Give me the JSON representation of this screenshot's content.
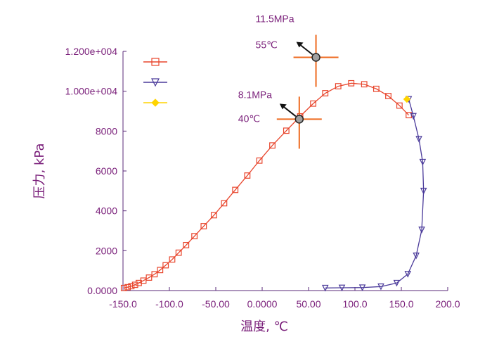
{
  "chart_data": {
    "type": "line",
    "xlabel": "温度, ℃",
    "ylabel": "压力, kPa",
    "xlim": [
      -150,
      200
    ],
    "ylim": [
      0,
      12000
    ],
    "x_ticks": [
      -150,
      -100,
      -50,
      0,
      50,
      100,
      150,
      200
    ],
    "x_tick_labels": [
      "-150.0",
      "-100.0",
      "-50.00",
      "0.0000",
      "50.00",
      "100.0",
      "150.0",
      "200.0"
    ],
    "y_ticks": [
      0,
      2000,
      4000,
      6000,
      8000,
      10000,
      12000
    ],
    "y_tick_labels": [
      "0.0000",
      "2000",
      "4000",
      "6000",
      "8000",
      "1.000e+004",
      "1.200e+004"
    ],
    "grid": false,
    "legend_position": "top-left",
    "series": [
      {
        "marker": "square",
        "color": "#e8452c",
        "x": [
          -149,
          -145,
          -141,
          -137,
          -133,
          -128,
          -122,
          -116,
          -110,
          -104,
          -97,
          -90,
          -82,
          -73,
          -63,
          -52,
          -41,
          -29,
          -16,
          -3,
          11,
          26,
          41,
          55,
          68,
          82,
          96,
          110,
          123,
          136,
          148,
          158
        ],
        "y": [
          130,
          170,
          220,
          290,
          380,
          500,
          650,
          820,
          1030,
          1270,
          1560,
          1900,
          2280,
          2730,
          3230,
          3780,
          4380,
          5050,
          5770,
          6520,
          7280,
          8020,
          8740,
          9380,
          9900,
          10250,
          10400,
          10350,
          10120,
          9760,
          9280,
          8800
        ]
      },
      {
        "marker": "triangle-down",
        "color": "#4a3a9a",
        "x": [
          158,
          163,
          169,
          173,
          174,
          172,
          166,
          157,
          145,
          128,
          108,
          86,
          68
        ],
        "y": [
          9600,
          8750,
          7600,
          6450,
          5000,
          3050,
          1750,
          830,
          380,
          200,
          150,
          140,
          130
        ]
      },
      {
        "marker": "diamond",
        "color": "#ffd400",
        "x": [
          156
        ],
        "y": [
          9600
        ]
      }
    ],
    "annotations": [
      {
        "pressure": "8.1MPa",
        "temperature": "40℃",
        "x": 40,
        "y": 8600
      },
      {
        "pressure": "11.5MPa",
        "temperature": "55℃",
        "x": 58,
        "y": 11700
      }
    ]
  }
}
